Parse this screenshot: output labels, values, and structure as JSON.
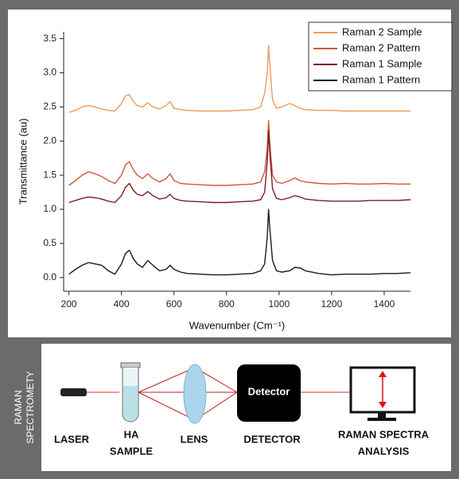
{
  "chart_data": {
    "type": "line",
    "xlabel": "Wavenumber (Cm⁻¹)",
    "ylabel": "Transmittance (au)",
    "x": [
      200,
      225,
      250,
      275,
      300,
      325,
      350,
      375,
      400,
      415,
      430,
      445,
      460,
      480,
      500,
      520,
      545,
      570,
      585,
      600,
      625,
      650,
      700,
      750,
      800,
      850,
      900,
      930,
      945,
      955,
      960,
      965,
      975,
      990,
      1010,
      1040,
      1060,
      1080,
      1100,
      1150,
      1200,
      1250,
      1300,
      1350,
      1400,
      1450,
      1500
    ],
    "series": [
      {
        "name": "Raman 2 Sample",
        "color": "#ef9a5c",
        "values": [
          2.42,
          2.45,
          2.5,
          2.52,
          2.5,
          2.47,
          2.45,
          2.44,
          2.55,
          2.66,
          2.68,
          2.58,
          2.52,
          2.5,
          2.56,
          2.5,
          2.47,
          2.52,
          2.58,
          2.48,
          2.46,
          2.45,
          2.44,
          2.44,
          2.44,
          2.45,
          2.46,
          2.5,
          2.7,
          3.0,
          3.4,
          3.1,
          2.6,
          2.48,
          2.5,
          2.55,
          2.52,
          2.48,
          2.46,
          2.45,
          2.45,
          2.44,
          2.44,
          2.44,
          2.44,
          2.44,
          2.44
        ]
      },
      {
        "name": "Raman 2 Pattern",
        "color": "#d2573a",
        "values": [
          1.35,
          1.42,
          1.5,
          1.55,
          1.52,
          1.48,
          1.42,
          1.38,
          1.5,
          1.65,
          1.7,
          1.58,
          1.5,
          1.45,
          1.52,
          1.45,
          1.4,
          1.45,
          1.52,
          1.42,
          1.38,
          1.37,
          1.36,
          1.35,
          1.35,
          1.36,
          1.37,
          1.4,
          1.55,
          1.9,
          2.3,
          1.95,
          1.5,
          1.4,
          1.38,
          1.42,
          1.46,
          1.42,
          1.4,
          1.38,
          1.37,
          1.38,
          1.37,
          1.37,
          1.38,
          1.37,
          1.37
        ]
      },
      {
        "name": "Raman 1 Sample",
        "color": "#7a1f22",
        "values": [
          1.1,
          1.13,
          1.16,
          1.18,
          1.17,
          1.15,
          1.12,
          1.1,
          1.2,
          1.32,
          1.38,
          1.28,
          1.22,
          1.2,
          1.26,
          1.2,
          1.15,
          1.17,
          1.22,
          1.16,
          1.13,
          1.12,
          1.11,
          1.1,
          1.1,
          1.11,
          1.12,
          1.14,
          1.25,
          1.7,
          2.15,
          1.8,
          1.3,
          1.16,
          1.14,
          1.17,
          1.2,
          1.18,
          1.15,
          1.13,
          1.12,
          1.12,
          1.12,
          1.13,
          1.13,
          1.13,
          1.14
        ]
      },
      {
        "name": "Raman 1 Pattern",
        "color": "#1a1a1a",
        "values": [
          0.05,
          0.12,
          0.18,
          0.22,
          0.2,
          0.18,
          0.1,
          0.05,
          0.2,
          0.35,
          0.4,
          0.28,
          0.2,
          0.15,
          0.25,
          0.18,
          0.1,
          0.12,
          0.18,
          0.12,
          0.08,
          0.06,
          0.05,
          0.04,
          0.04,
          0.05,
          0.06,
          0.1,
          0.2,
          0.6,
          1.0,
          0.7,
          0.25,
          0.1,
          0.08,
          0.1,
          0.15,
          0.14,
          0.1,
          0.06,
          0.04,
          0.05,
          0.05,
          0.05,
          0.06,
          0.06,
          0.07
        ]
      }
    ],
    "xlim": [
      180,
      1500
    ],
    "ylim": [
      -0.2,
      3.6
    ],
    "xticks": [
      200,
      400,
      600,
      800,
      1000,
      1200,
      1400
    ],
    "yticks": [
      {
        "value": 0,
        "label": "0.0"
      },
      0.5,
      {
        "value": 1,
        "label": "1.0"
      },
      1.5,
      {
        "value": 2,
        "label": "2.0"
      },
      2.5,
      {
        "value": 3,
        "label": "3.0"
      },
      3.5
    ],
    "legend": "upper right"
  },
  "diagram": {
    "side_label": [
      "RAMAN",
      "SPECTROMETY"
    ],
    "detector_text": "Detector",
    "labels": [
      "LASER",
      [
        "HA",
        "SAMPLE"
      ],
      "LENS",
      "DETECTOR",
      [
        "RAMAN SPECTRA",
        "ANALYSIS"
      ]
    ]
  }
}
